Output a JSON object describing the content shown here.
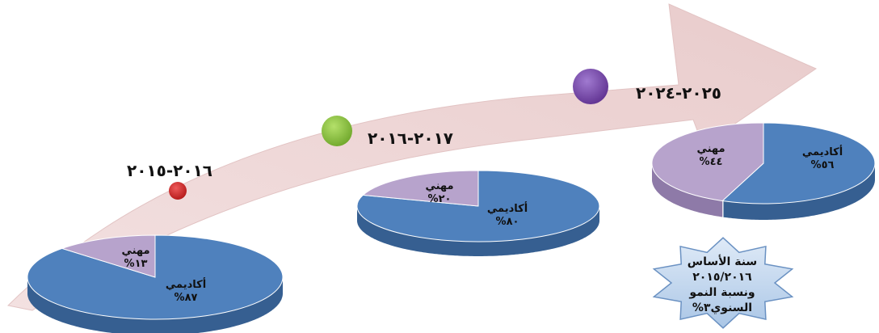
{
  "periods": [
    {
      "label": "٢٠١٦-٢٠١٥",
      "dot_color": "#cc2222"
    },
    {
      "label": "٢٠١٧-٢٠١٦",
      "dot_color": "#8cc43a"
    },
    {
      "label": "٢٠٢٥-٢٠٢٤",
      "dot_color": "#7e47b0"
    }
  ],
  "pies": [
    {
      "slices": [
        {
          "name": "أكاديمي",
          "percent_text": "٨٧%",
          "value": 87,
          "color": "#4f81bd"
        },
        {
          "name": "مهني",
          "percent_text": "١٣%",
          "value": 13,
          "color": "#b7a3cc"
        }
      ]
    },
    {
      "slices": [
        {
          "name": "أكاديمي",
          "percent_text": "٨٠%",
          "value": 80,
          "color": "#4f81bd"
        },
        {
          "name": "مهني",
          "percent_text": "٢٠%",
          "value": 20,
          "color": "#b7a3cc"
        }
      ]
    },
    {
      "slices": [
        {
          "name": "أكاديمي",
          "percent_text": "٥٦%",
          "value": 56,
          "color": "#4f81bd"
        },
        {
          "name": "مهني",
          "percent_text": "٤٤%",
          "value": 44,
          "color": "#b7a3cc"
        }
      ]
    }
  ],
  "note": {
    "lines": [
      "سنة الأساس",
      "٢٠١٥/٢٠١٦",
      "ونسبة النمو",
      "السنوي٣%"
    ]
  },
  "colors": {
    "arrow_fill": "#efd6d6",
    "arrow_edge": "#e3bdbd",
    "blue": "#4f81bd",
    "blue_side": "#365f91",
    "lavender": "#b7a3cc",
    "lavender_side": "#8e7aa8",
    "star_fill": "#c6d9ee",
    "star_edge": "#6a91c2"
  }
}
